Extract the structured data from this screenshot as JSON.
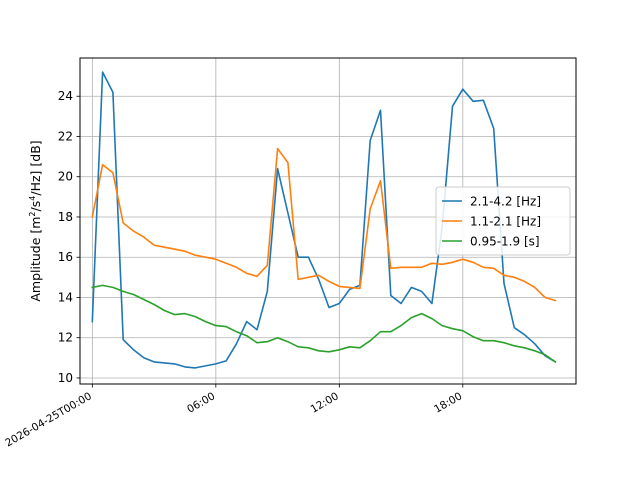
{
  "chart_data": {
    "type": "line",
    "ylabel_prefix": "Amplitude [m",
    "ylabel_sup1": "2",
    "ylabel_mid": "/s",
    "ylabel_sup2": "4",
    "ylabel_suffix": "/Hz] [dB]",
    "xlim": [
      -0.6,
      23.5
    ],
    "ylim": [
      9.7,
      25.9
    ],
    "grid": true,
    "legend_position": "center-right",
    "x_ticks": [
      {
        "x": 0,
        "label": "2026-04-25T00:00"
      },
      {
        "x": 6,
        "label": "06:00"
      },
      {
        "x": 12,
        "label": "12:00"
      },
      {
        "x": 18,
        "label": "18:00"
      }
    ],
    "y_ticks": [
      10,
      12,
      14,
      16,
      18,
      20,
      22,
      24
    ],
    "x": [
      0,
      0.5,
      1,
      1.5,
      2,
      2.5,
      3,
      3.5,
      4,
      4.5,
      5,
      5.5,
      6,
      6.5,
      7,
      7.5,
      8,
      8.5,
      9,
      9.5,
      10,
      10.5,
      11,
      11.5,
      12,
      12.5,
      13,
      13.5,
      14,
      14.5,
      15,
      15.5,
      16,
      16.5,
      17,
      17.5,
      18,
      18.5,
      19,
      19.5,
      20,
      20.5,
      21,
      21.5,
      22,
      22.5
    ],
    "series": [
      {
        "name": "2.1-4.2 [Hz]",
        "color": "#1f77b4",
        "values": [
          12.8,
          25.2,
          24.2,
          11.9,
          11.4,
          11.0,
          10.8,
          10.75,
          10.7,
          10.55,
          10.5,
          10.6,
          10.7,
          10.85,
          11.7,
          12.8,
          12.4,
          14.3,
          20.4,
          18.2,
          16.0,
          16.0,
          14.9,
          13.5,
          13.7,
          14.4,
          14.6,
          21.8,
          23.3,
          14.1,
          13.7,
          14.5,
          14.3,
          13.7,
          17.5,
          23.5,
          24.35,
          23.75,
          23.8,
          22.4,
          14.7,
          12.5,
          12.15,
          11.7,
          11.1,
          10.8
        ]
      },
      {
        "name": "1.1-2.1 [Hz]",
        "color": "#ff7f0e",
        "values": [
          18.0,
          20.6,
          20.2,
          17.7,
          17.3,
          17.0,
          16.6,
          16.5,
          16.4,
          16.3,
          16.1,
          16.0,
          15.9,
          15.7,
          15.5,
          15.2,
          15.05,
          15.6,
          21.4,
          20.7,
          14.9,
          15.0,
          15.1,
          14.8,
          14.55,
          14.5,
          14.45,
          18.4,
          19.8,
          15.45,
          15.5,
          15.5,
          15.5,
          15.7,
          15.65,
          15.75,
          15.9,
          15.75,
          15.5,
          15.45,
          15.1,
          15.0,
          14.8,
          14.5,
          14.0,
          13.85
        ]
      },
      {
        "name": "0.95-1.9 [s]",
        "color": "#2ca02c",
        "values": [
          14.5,
          14.6,
          14.5,
          14.3,
          14.15,
          13.9,
          13.65,
          13.35,
          13.15,
          13.2,
          13.05,
          12.8,
          12.6,
          12.55,
          12.3,
          12.1,
          11.75,
          11.8,
          12.0,
          11.8,
          11.55,
          11.5,
          11.35,
          11.3,
          11.4,
          11.55,
          11.5,
          11.85,
          12.3,
          12.3,
          12.6,
          13.0,
          13.2,
          12.95,
          12.6,
          12.45,
          12.35,
          12.05,
          11.85,
          11.85,
          11.75,
          11.6,
          11.5,
          11.35,
          11.15,
          10.8
        ]
      }
    ]
  }
}
